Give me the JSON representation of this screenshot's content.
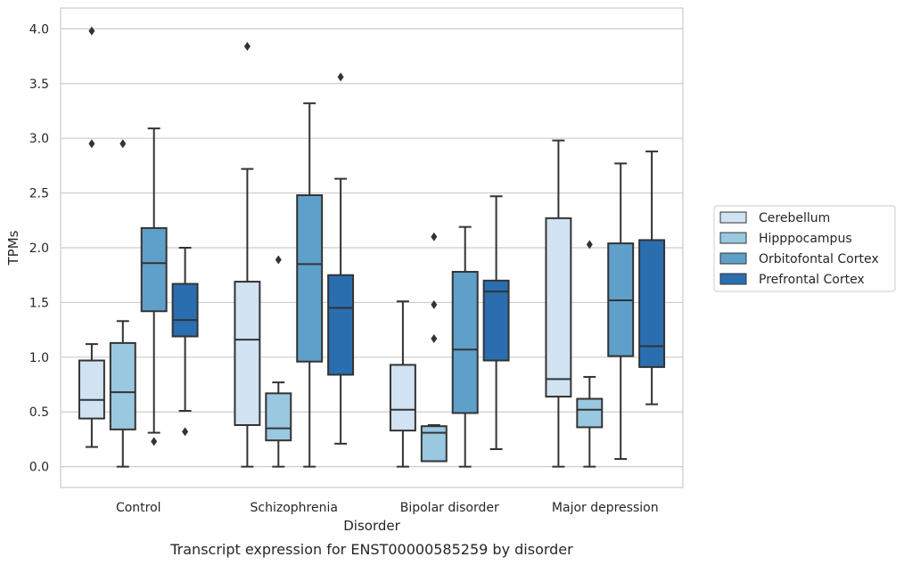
{
  "chart_data": {
    "type": "box",
    "caption": "Transcript expression for ENST00000585259 by disorder",
    "xlabel": "Disorder",
    "ylabel": "TPMs",
    "ylim": [
      -0.19,
      4.19
    ],
    "yticks": [
      "0.0",
      "0.5",
      "1.0",
      "1.5",
      "2.0",
      "2.5",
      "3.0",
      "3.5",
      "4.0"
    ],
    "grid": "horizontal",
    "legend_position": "right",
    "categories": [
      "Control",
      "Schizophrenia",
      "Bipolar disorder",
      "Major depression"
    ],
    "series": [
      {
        "name": "Cerebellum",
        "color": "#d1e2f2",
        "boxes": [
          {
            "whisker_low": 0.18,
            "q1": 0.44,
            "median": 0.61,
            "q3": 0.97,
            "whisker_high": 1.12,
            "outliers": [
              2.95,
              3.98
            ]
          },
          {
            "whisker_low": 0.0,
            "q1": 0.38,
            "median": 1.16,
            "q3": 1.69,
            "whisker_high": 2.72,
            "outliers": [
              3.84
            ]
          },
          {
            "whisker_low": 0.0,
            "q1": 0.33,
            "median": 0.52,
            "q3": 0.93,
            "whisker_high": 1.51,
            "outliers": []
          },
          {
            "whisker_low": 0.0,
            "q1": 0.64,
            "median": 0.8,
            "q3": 2.27,
            "whisker_high": 2.98,
            "outliers": []
          }
        ]
      },
      {
        "name": "Hipppocampus",
        "color": "#9ac8e0",
        "boxes": [
          {
            "whisker_low": 0.0,
            "q1": 0.34,
            "median": 0.68,
            "q3": 1.13,
            "whisker_high": 1.33,
            "outliers": [
              2.95
            ]
          },
          {
            "whisker_low": 0.0,
            "q1": 0.24,
            "median": 0.35,
            "q3": 0.67,
            "whisker_high": 0.77,
            "outliers": [
              1.89
            ]
          },
          {
            "whisker_low": 0.05,
            "q1": 0.05,
            "median": 0.31,
            "q3": 0.37,
            "whisker_high": 0.38,
            "outliers": [
              1.17,
              1.48,
              2.1
            ]
          },
          {
            "whisker_low": 0.0,
            "q1": 0.36,
            "median": 0.52,
            "q3": 0.62,
            "whisker_high": 0.82,
            "outliers": [
              2.03
            ]
          }
        ]
      },
      {
        "name": "Orbitofontal Cortex",
        "color": "#5fa0ca",
        "boxes": [
          {
            "whisker_low": 0.31,
            "q1": 1.42,
            "median": 1.86,
            "q3": 2.18,
            "whisker_high": 3.09,
            "outliers": [
              0.23
            ]
          },
          {
            "whisker_low": 0.0,
            "q1": 0.96,
            "median": 1.85,
            "q3": 2.48,
            "whisker_high": 3.32,
            "outliers": []
          },
          {
            "whisker_low": 0.0,
            "q1": 0.49,
            "median": 1.07,
            "q3": 1.78,
            "whisker_high": 2.19,
            "outliers": []
          },
          {
            "whisker_low": 0.07,
            "q1": 1.01,
            "median": 1.52,
            "q3": 2.04,
            "whisker_high": 2.77,
            "outliers": []
          }
        ]
      },
      {
        "name": "Prefrontal Cortex",
        "color": "#2a6eb0",
        "boxes": [
          {
            "whisker_low": 0.51,
            "q1": 1.19,
            "median": 1.34,
            "q3": 1.67,
            "whisker_high": 2.0,
            "outliers": [
              0.32
            ]
          },
          {
            "whisker_low": 0.21,
            "q1": 0.84,
            "median": 1.45,
            "q3": 1.75,
            "whisker_high": 2.63,
            "outliers": [
              3.56
            ]
          },
          {
            "whisker_low": 0.16,
            "q1": 0.97,
            "median": 1.6,
            "q3": 1.7,
            "whisker_high": 2.47,
            "outliers": []
          },
          {
            "whisker_low": 0.57,
            "q1": 0.91,
            "median": 1.1,
            "q3": 2.07,
            "whisker_high": 2.88,
            "outliers": []
          }
        ]
      }
    ]
  }
}
